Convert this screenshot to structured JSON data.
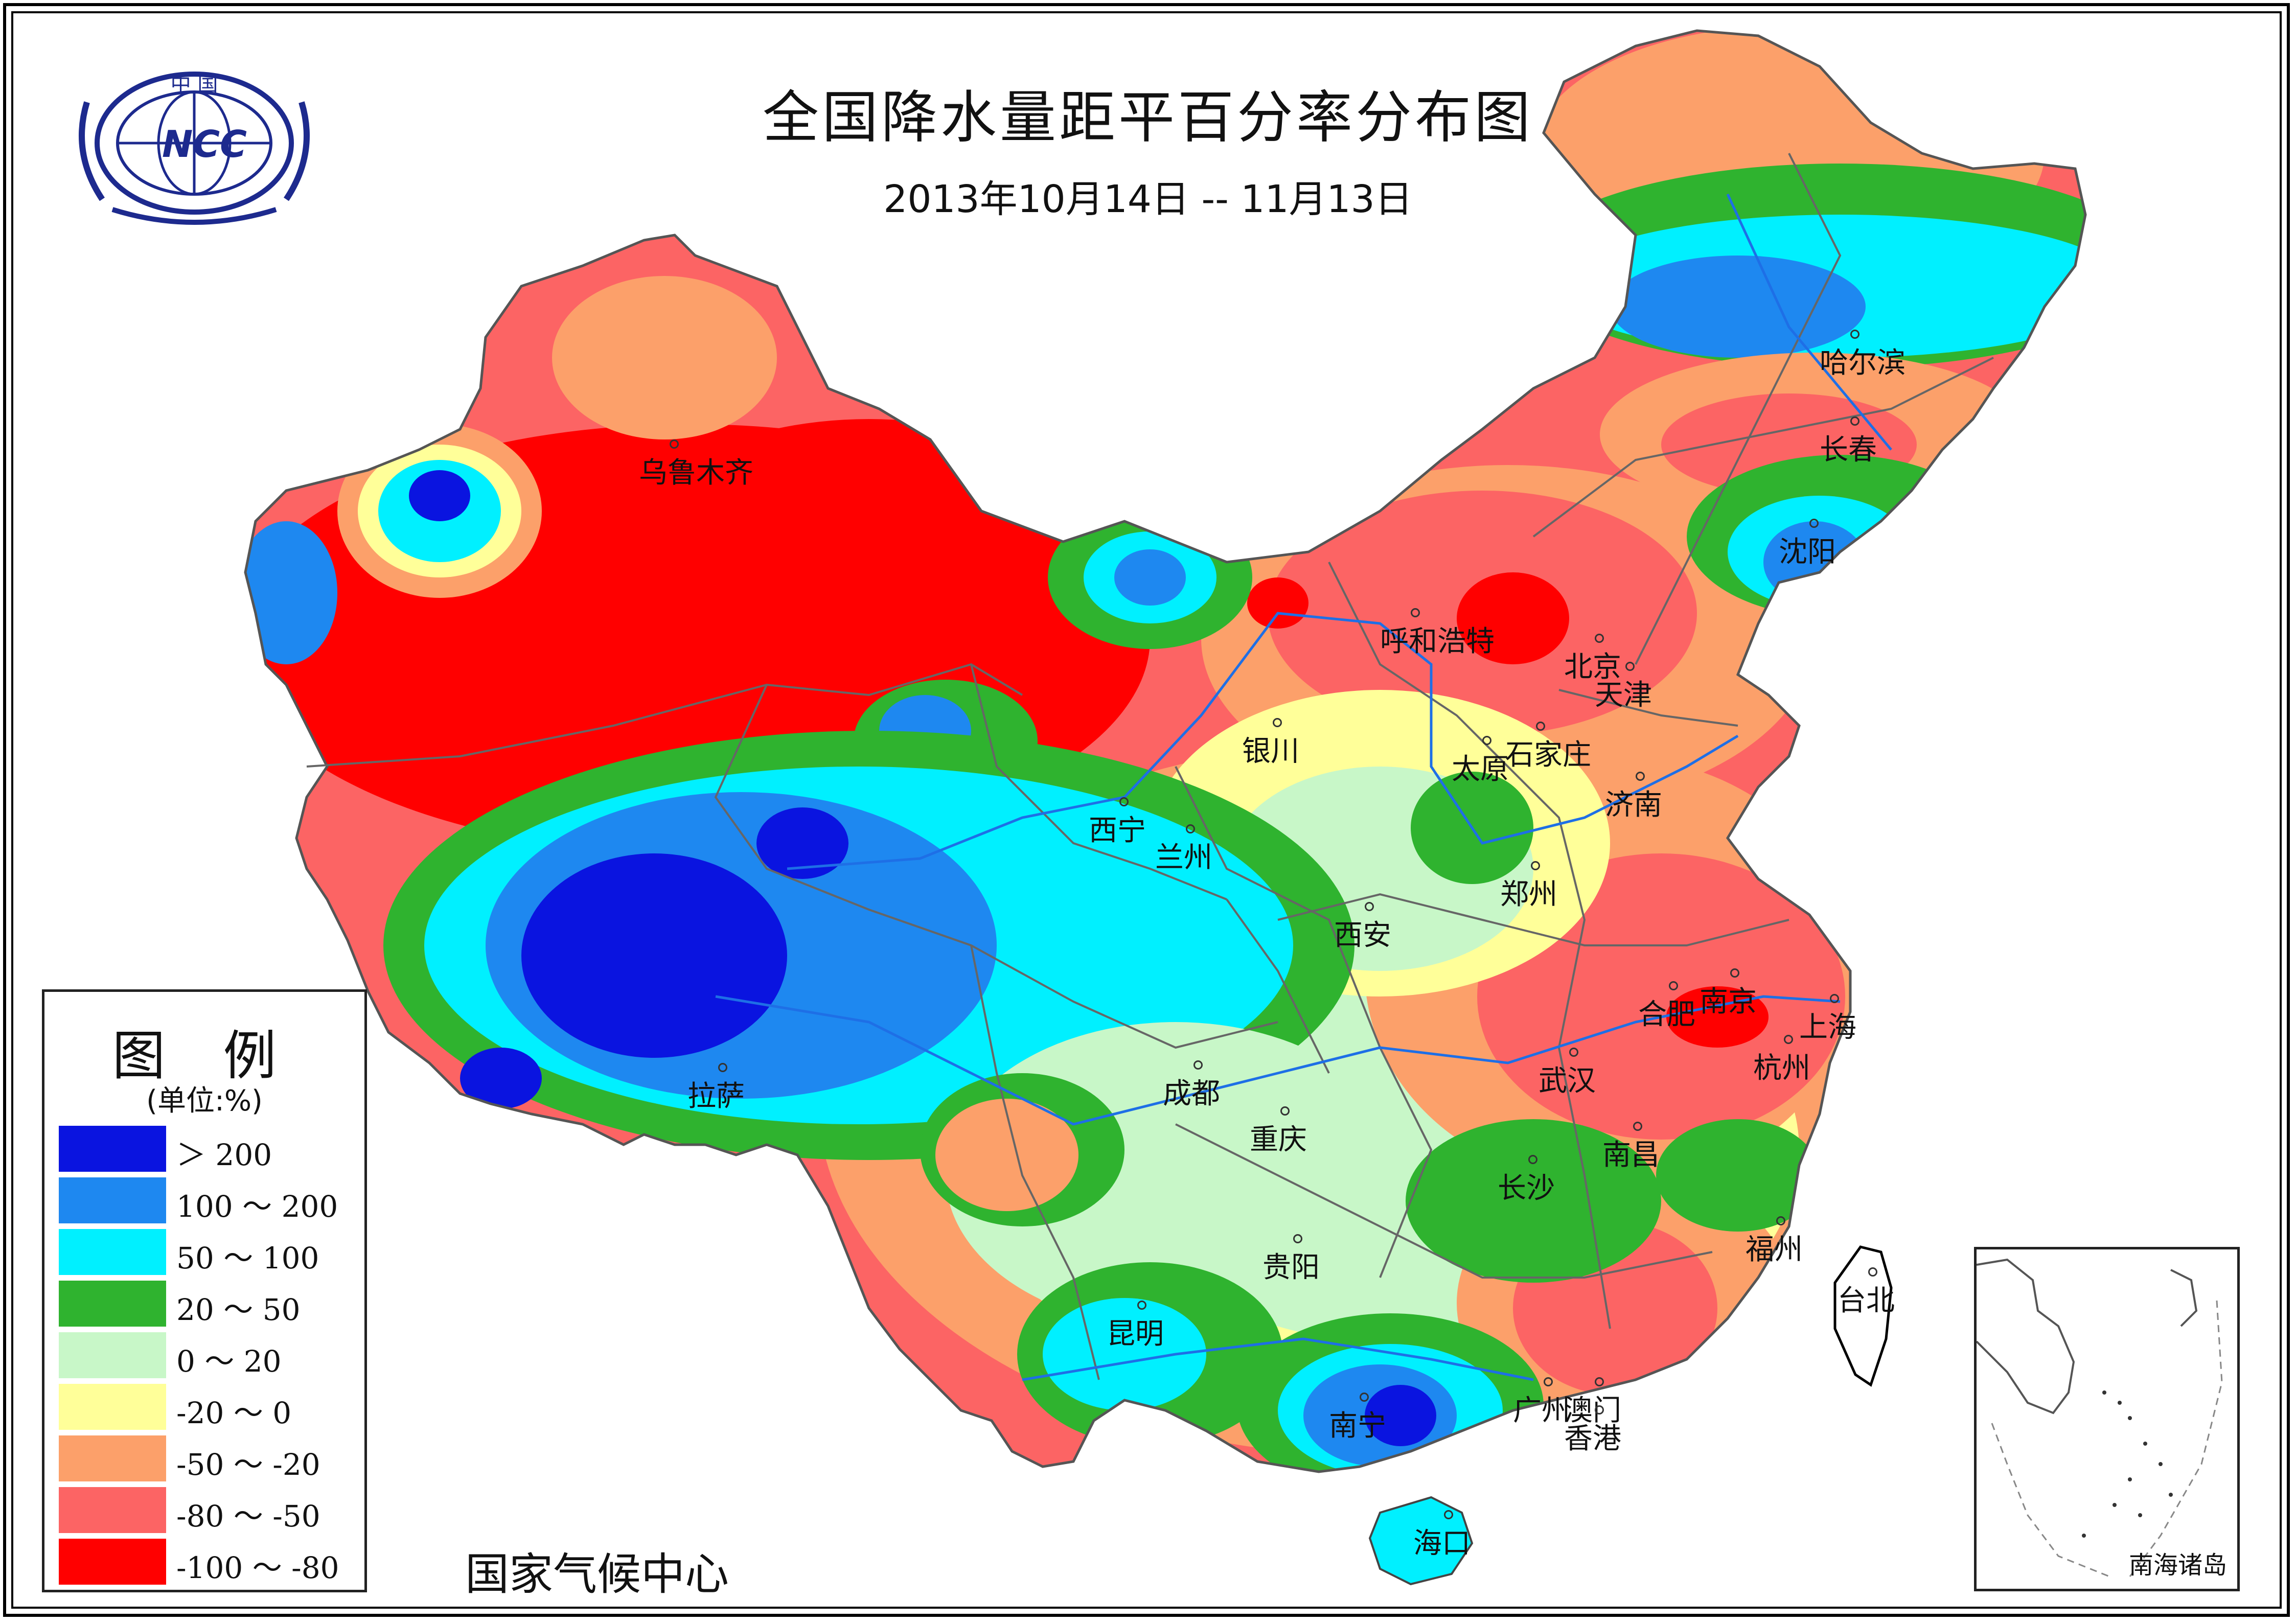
{
  "title": "全国降水量距平百分率分布图",
  "subtitle": "2013年10月14日 -- 11月13日",
  "logo": {
    "text_top": "中 国",
    "text_main": "NCC"
  },
  "legend": {
    "title": "图 例",
    "unit": "(单位:%)",
    "items": [
      {
        "label": "＞ 200",
        "color": "#0a14e0"
      },
      {
        "label": "100 ～ 200",
        "color": "#1e88f0"
      },
      {
        "label": "50 ～ 100",
        "color": "#00f0ff"
      },
      {
        "label": "20 ～ 50",
        "color": "#2fb32f"
      },
      {
        "label": "0 ～ 20",
        "color": "#c8f7c8"
      },
      {
        "label": "-20 ～ 0",
        "color": "#ffff99"
      },
      {
        "label": "-50 ～ -20",
        "color": "#fca06a"
      },
      {
        "label": "-80 ～ -50",
        "color": "#fc6464"
      },
      {
        "label": "-100 ～ -80",
        "color": "#ff0000"
      }
    ]
  },
  "footer": "国家气候中心",
  "inset_label": "南海诸岛",
  "cities": [
    {
      "name": "乌鲁木齐"
    },
    {
      "name": "哈尔滨"
    },
    {
      "name": "长春"
    },
    {
      "name": "沈阳"
    },
    {
      "name": "呼和浩特"
    },
    {
      "name": "北京"
    },
    {
      "name": "天津"
    },
    {
      "name": "银川"
    },
    {
      "name": "太原"
    },
    {
      "name": "石家庄"
    },
    {
      "name": "济南"
    },
    {
      "name": "西宁"
    },
    {
      "name": "兰州"
    },
    {
      "name": "郑州"
    },
    {
      "name": "西安"
    },
    {
      "name": "合肥"
    },
    {
      "name": "南京"
    },
    {
      "name": "上海"
    },
    {
      "name": "拉萨"
    },
    {
      "name": "成都"
    },
    {
      "name": "武汉"
    },
    {
      "name": "杭州"
    },
    {
      "name": "重庆"
    },
    {
      "name": "南昌"
    },
    {
      "name": "长沙"
    },
    {
      "name": "福州"
    },
    {
      "name": "贵阳"
    },
    {
      "name": "台北"
    },
    {
      "name": "昆明"
    },
    {
      "name": "广州"
    },
    {
      "name": "澳门"
    },
    {
      "name": "香港"
    },
    {
      "name": "南宁"
    },
    {
      "name": "海口"
    }
  ]
}
